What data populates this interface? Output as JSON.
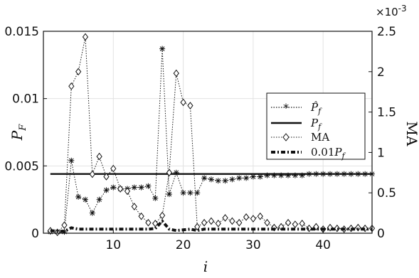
{
  "chart_data": {
    "type": "line",
    "xlabel": "i",
    "ylabel_left": "P_F",
    "ylabel_right": "MA",
    "right_scale_label": "×10⁻³",
    "xlim": [
      0,
      47
    ],
    "ylim_left": [
      0,
      0.015
    ],
    "ylim_right": [
      0,
      2.5
    ],
    "grid": true,
    "legend_position": "center-right",
    "x_ticks": [
      {
        "value": 10,
        "label": "10"
      },
      {
        "value": 20,
        "label": "20"
      },
      {
        "value": 30,
        "label": "30"
      },
      {
        "value": 40,
        "label": "40"
      }
    ],
    "y_ticks_left": [
      {
        "value": 0,
        "label": "0"
      },
      {
        "value": 0.005,
        "label": "0.005"
      },
      {
        "value": 0.01,
        "label": "0.01"
      },
      {
        "value": 0.015,
        "label": "0.015"
      }
    ],
    "y_ticks_right": [
      {
        "value": 0,
        "label": "0"
      },
      {
        "value": 0.5,
        "label": "0.5"
      },
      {
        "value": 1,
        "label": "1"
      },
      {
        "value": 1.5,
        "label": "1.5"
      },
      {
        "value": 2,
        "label": "2"
      },
      {
        "value": 2.5,
        "label": "2.5"
      }
    ],
    "x": [
      1,
      2,
      3,
      4,
      5,
      6,
      7,
      8,
      9,
      10,
      11,
      12,
      13,
      14,
      15,
      16,
      17,
      18,
      19,
      20,
      21,
      22,
      23,
      24,
      25,
      26,
      27,
      28,
      29,
      30,
      31,
      32,
      33,
      34,
      35,
      36,
      37,
      38,
      39,
      40,
      41,
      42,
      43,
      44,
      45,
      46,
      47
    ],
    "series": [
      {
        "name": "P̂_f",
        "axis": "left",
        "style": "dotted-asterisk",
        "values": [
          0.0001,
          0.0001,
          0.0001,
          0.0054,
          0.0027,
          0.0025,
          0.0015,
          0.0025,
          0.0032,
          0.0034,
          0.0033,
          0.0033,
          0.0034,
          0.0034,
          0.0035,
          0.0026,
          0.0137,
          0.0029,
          0.0045,
          0.003,
          0.003,
          0.003,
          0.0041,
          0.004,
          0.0039,
          0.0039,
          0.004,
          0.0041,
          0.0041,
          0.0042,
          0.0042,
          0.0043,
          0.0043,
          0.0043,
          0.0043,
          0.0043,
          0.0043,
          0.0044,
          0.0044,
          0.0044,
          0.0044,
          0.0044,
          0.0044,
          0.0044,
          0.0044,
          0.0044,
          0.0044
        ]
      },
      {
        "name": "P_f",
        "axis": "left",
        "style": "solid",
        "values": [
          0.0044,
          0.0044,
          0.0044,
          0.0044,
          0.0044,
          0.0044,
          0.0044,
          0.0044,
          0.0044,
          0.0044,
          0.0044,
          0.0044,
          0.0044,
          0.0044,
          0.0044,
          0.0044,
          0.0044,
          0.0044,
          0.0044,
          0.0044,
          0.0044,
          0.0044,
          0.0044,
          0.0044,
          0.0044,
          0.0044,
          0.0044,
          0.0044,
          0.0044,
          0.0044,
          0.0044,
          0.0044,
          0.0044,
          0.0044,
          0.0044,
          0.0044,
          0.0044,
          0.0044,
          0.0044,
          0.0044,
          0.0044,
          0.0044,
          0.0044,
          0.0044,
          0.0044,
          0.0044,
          0.0044
        ]
      },
      {
        "name": "MA",
        "axis": "right",
        "style": "dotted-diamond",
        "values": [
          0.03,
          0.01,
          0.1,
          1.82,
          2.0,
          2.43,
          0.73,
          0.95,
          0.7,
          0.8,
          0.55,
          0.52,
          0.33,
          0.21,
          0.13,
          0.12,
          0.22,
          0.75,
          1.98,
          1.62,
          1.58,
          0.08,
          0.13,
          0.15,
          0.12,
          0.19,
          0.15,
          0.13,
          0.2,
          0.18,
          0.21,
          0.13,
          0.07,
          0.08,
          0.13,
          0.11,
          0.12,
          0.06,
          0.08,
          0.05,
          0.07,
          0.06,
          0.05,
          0.06,
          0.07,
          0.06,
          0.06
        ]
      },
      {
        "name": "0.01P_f",
        "axis": "left",
        "style": "thick-dashdot",
        "values": [
          0.0002,
          0.00015,
          0.00015,
          0.0004,
          0.0003,
          0.0003,
          0.0003,
          0.0003,
          0.0003,
          0.0003,
          0.0003,
          0.0003,
          0.0003,
          0.0003,
          0.0003,
          0.00035,
          0.0009,
          0.0003,
          0.0002,
          0.00025,
          0.0003,
          0.0002,
          0.0003,
          0.0003,
          0.0003,
          0.0003,
          0.0003,
          0.0003,
          0.0003,
          0.0003,
          0.0003,
          0.0003,
          0.0003,
          0.0003,
          0.0003,
          0.0003,
          0.0003,
          0.0003,
          0.0003,
          0.0003,
          0.0003,
          0.0003,
          0.0003,
          0.0003,
          0.0003,
          0.0003,
          0.0003
        ]
      }
    ]
  }
}
